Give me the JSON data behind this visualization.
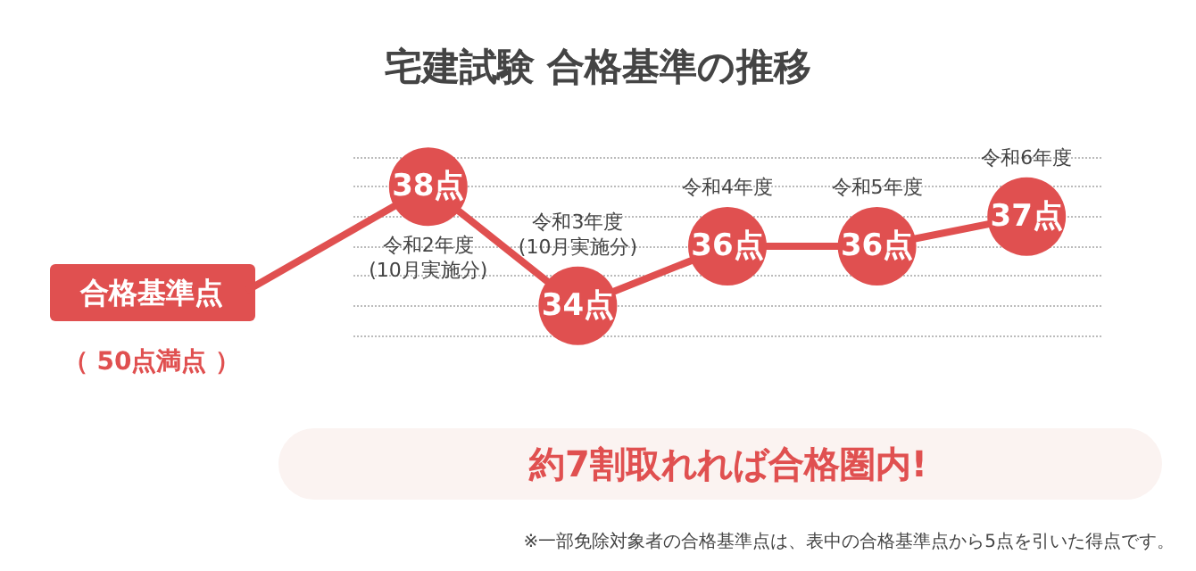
{
  "chart_data": {
    "type": "line",
    "title": "宅建試験 合格基準の推移",
    "categories": [
      "令和2年度\n(10月実施分)",
      "令和3年度\n(10月実施分)",
      "令和4年度",
      "令和5年度",
      "令和6年度"
    ],
    "series": [
      {
        "name": "合格基準点",
        "color": "#e05050",
        "values": [
          38,
          34,
          36,
          36,
          37
        ],
        "value_labels": [
          "38点",
          "34点",
          "36点",
          "36点",
          "37点"
        ]
      }
    ],
    "ylim": [
      33,
      39
    ],
    "yticks": [
      {
        "value": 33,
        "label": null
      },
      {
        "value": 34,
        "label": null
      },
      {
        "value": 35,
        "label": null
      },
      {
        "value": 36,
        "label": null
      },
      {
        "value": 37,
        "label": null
      },
      {
        "value": 38,
        "label": null
      },
      {
        "value": 39,
        "label": null
      }
    ],
    "grid": "y",
    "marker": "circle",
    "line_style": "solid",
    "annotations": [
      "（ 50点満点 ）",
      "約7割取れれば合格圏内!",
      "※一部免除対象者の合格基準点は、表中の合格基準点から5点を引いた得点です。"
    ]
  }
}
